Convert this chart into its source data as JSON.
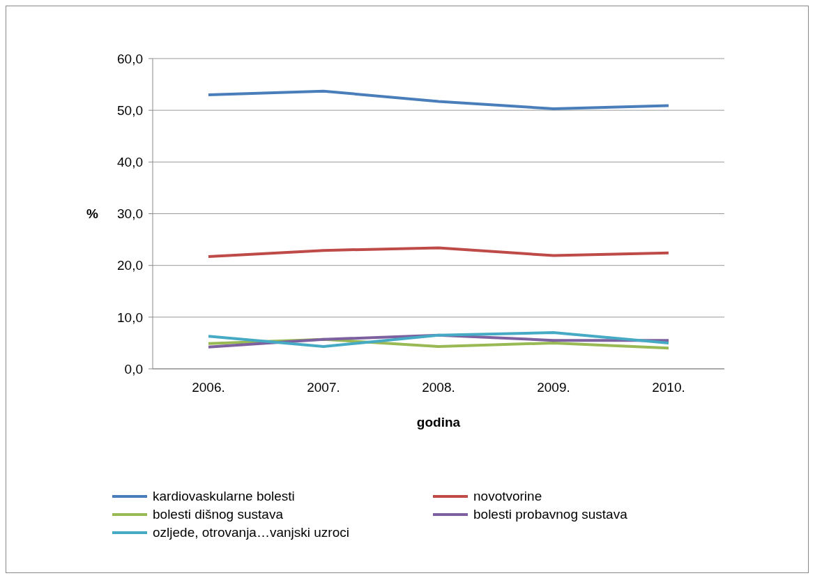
{
  "chart_data": {
    "type": "line",
    "xlabel": "godina",
    "ylabel": "%",
    "categories": [
      "2006.",
      "2007.",
      "2008.",
      "2009.",
      "2010."
    ],
    "series": [
      {
        "name": "kardiovaskularne bolesti",
        "color": "#4a7ebb",
        "values": [
          53.0,
          53.7,
          51.7,
          50.3,
          50.9
        ]
      },
      {
        "name": "novotvorine",
        "color": "#be4b48",
        "values": [
          21.7,
          22.9,
          23.4,
          21.9,
          22.4
        ]
      },
      {
        "name": "bolesti dišnog sustava",
        "color": "#98b954",
        "values": [
          4.9,
          5.7,
          4.3,
          5.0,
          4.0
        ]
      },
      {
        "name": "bolesti probavnog sustava",
        "color": "#7d60a0",
        "values": [
          4.2,
          5.7,
          6.5,
          5.5,
          5.5
        ]
      },
      {
        "name": "ozljede, otrovanja…vanjski uzroci",
        "color": "#46aac5",
        "values": [
          6.3,
          4.3,
          6.5,
          7.0,
          5.0
        ]
      }
    ],
    "ylim": [
      0,
      60
    ],
    "yticks": [
      {
        "value": 0,
        "label": "0,0"
      },
      {
        "value": 10,
        "label": "10,0"
      },
      {
        "value": 20,
        "label": "20,0"
      },
      {
        "value": 30,
        "label": "30,0"
      },
      {
        "value": 40,
        "label": "40,0"
      },
      {
        "value": 50,
        "label": "50,0"
      },
      {
        "value": 60,
        "label": "60,0"
      }
    ],
    "grid": "y",
    "legend": "bottom",
    "marker": "none",
    "line_style": "solid"
  }
}
